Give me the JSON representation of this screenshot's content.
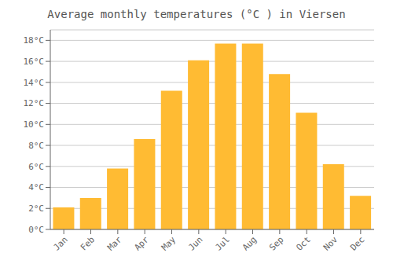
{
  "chart_data": {
    "type": "bar",
    "title": "Average monthly temperatures (°C ) in Viersen",
    "categories": [
      "Jan",
      "Feb",
      "Mar",
      "Apr",
      "May",
      "Jun",
      "Jul",
      "Aug",
      "Sep",
      "Oct",
      "Nov",
      "Dec"
    ],
    "values": [
      2.1,
      3.0,
      5.8,
      8.6,
      13.2,
      16.1,
      17.7,
      17.7,
      14.8,
      11.1,
      6.2,
      3.2
    ],
    "color": "#FFBB33",
    "ylim": [
      0,
      19
    ],
    "yticks": [
      {
        "value": 0,
        "label": "0°C"
      },
      {
        "value": 2,
        "label": "2°C"
      },
      {
        "value": 4,
        "label": "4°C"
      },
      {
        "value": 6,
        "label": "6°C"
      },
      {
        "value": 8,
        "label": "8°C"
      },
      {
        "value": 10,
        "label": "10°C"
      },
      {
        "value": 12,
        "label": "12°C"
      },
      {
        "value": 14,
        "label": "14°C"
      },
      {
        "value": 16,
        "label": "16°C"
      },
      {
        "value": 18,
        "label": "18°C"
      }
    ],
    "grid": true
  }
}
